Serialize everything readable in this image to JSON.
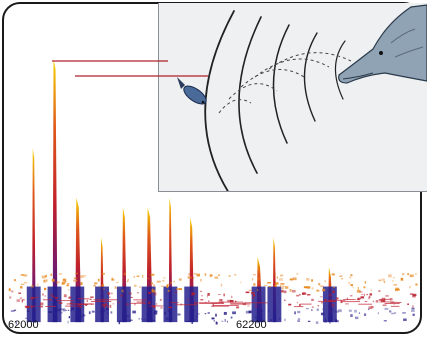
{
  "axis": {
    "tick_left": "62000",
    "tick_mid": "62200"
  },
  "illustration": {
    "subject": "dolphin-echolocation",
    "animal": "dolphin",
    "prey": "fish"
  },
  "colors": {
    "spectrogram_low": "#1b1f8a",
    "spectrogram_mid": "#c0202a",
    "spectrogram_high": "#f2c400",
    "pointer_line": "#b0202a",
    "inset_background": "#eef0f2"
  }
}
